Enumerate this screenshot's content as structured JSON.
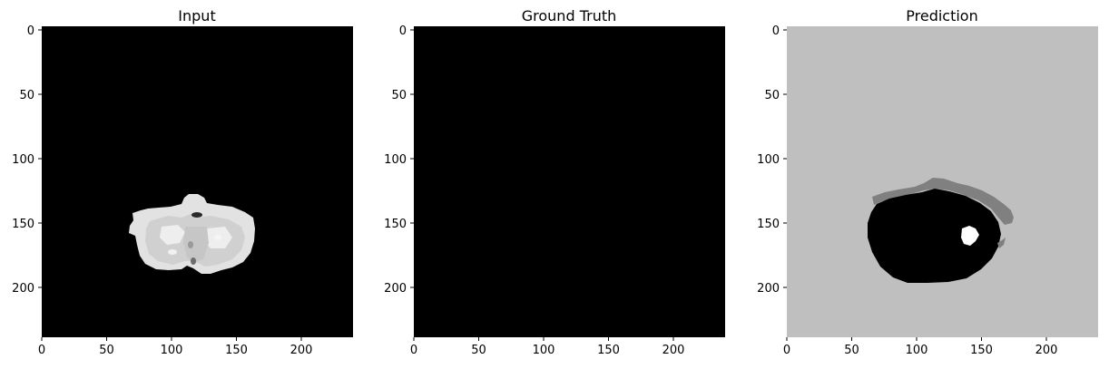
{
  "chart_data": [
    {
      "type": "heatmap",
      "title": "Input",
      "xlabel": "",
      "ylabel": "",
      "xlim": [
        0,
        240
      ],
      "ylim": [
        240,
        0
      ],
      "xticks": [
        "0",
        "50",
        "100",
        "150",
        "200"
      ],
      "yticks": [
        "0",
        "50",
        "100",
        "150",
        "200"
      ],
      "colormap": "gray",
      "background": "#000000",
      "content": "bright grayscale brain slice centered near x≈110, y≈160"
    },
    {
      "type": "heatmap",
      "title": "Ground Truth",
      "xlabel": "",
      "ylabel": "",
      "xlim": [
        0,
        240
      ],
      "ylim": [
        240,
        0
      ],
      "xticks": [
        "0",
        "50",
        "100",
        "150",
        "200"
      ],
      "yticks": [
        "0",
        "50",
        "100",
        "150",
        "200"
      ],
      "colormap": "gray",
      "background": "#000000",
      "content": "all black (empty mask)"
    },
    {
      "type": "heatmap",
      "title": "Prediction",
      "xlabel": "",
      "ylabel": "",
      "xlim": [
        0,
        240
      ],
      "ylim": [
        240,
        0
      ],
      "xticks": [
        "0",
        "50",
        "100",
        "150",
        "200"
      ],
      "yticks": [
        "0",
        "50",
        "100",
        "150",
        "200"
      ],
      "colormap": "gray",
      "background": "#bfbfbf",
      "regions": [
        {
          "label": "black blob",
          "color": "#000000",
          "center": [
            100,
            163
          ],
          "extent_x": [
            62,
            165
          ],
          "extent_y": [
            135,
            197
          ]
        },
        {
          "label": "gray arc",
          "color": "#808080",
          "extent_x": [
            66,
            176
          ],
          "extent_y": [
            118,
            145
          ]
        },
        {
          "label": "white spot",
          "color": "#ffffff",
          "center": [
            141,
            160
          ]
        }
      ]
    }
  ]
}
